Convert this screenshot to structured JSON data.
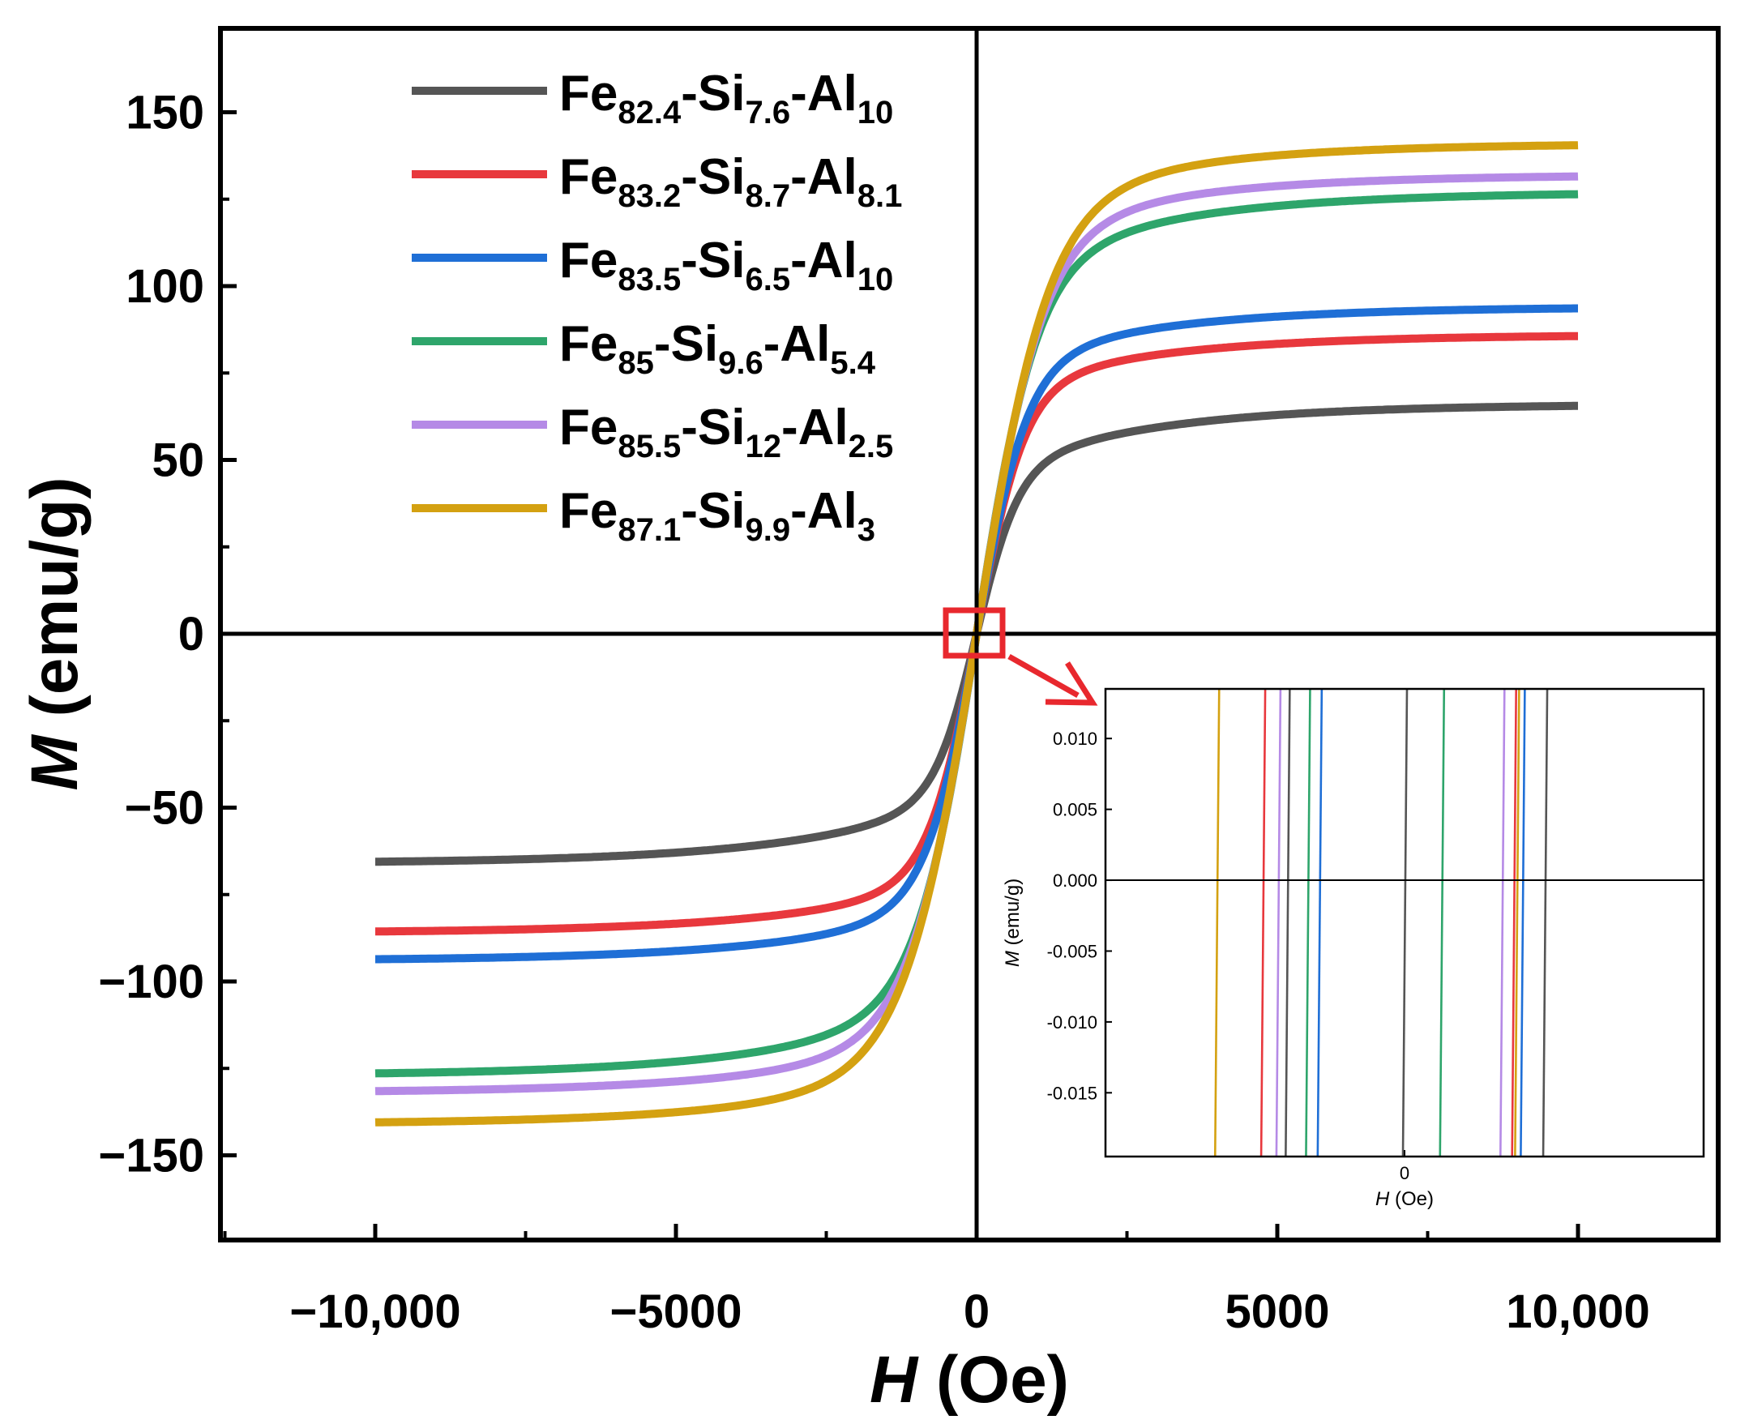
{
  "chart_data": {
    "type": "line",
    "xlabel": "H (Oe)",
    "xlabel_italic": "H",
    "xlabel_rest": " (Oe)",
    "ylabel": "M (emu/g)",
    "ylabel_italic": "M",
    "ylabel_rest": " (emu/g)",
    "xlim": [
      -12500,
      12500
    ],
    "ylim": [
      -175,
      175
    ],
    "xticks": [
      -10000,
      -5000,
      0,
      5000,
      10000
    ],
    "xtick_labels": [
      "−10,000",
      "−5000",
      "0",
      "5000",
      "10,000"
    ],
    "yticks": [
      -150,
      -100,
      -50,
      0,
      50,
      100,
      150
    ],
    "ytick_labels": [
      "−150",
      "−100",
      "−50",
      "0",
      "50",
      "100",
      "150"
    ],
    "legend_position": "top-left",
    "series": [
      {
        "name": "Fe82.4-Si7.6-Al10",
        "parts": [
          [
            "Fe",
            "82.4"
          ],
          [
            "-Si",
            "7.6"
          ],
          [
            "-Al",
            "10"
          ]
        ],
        "color": "#555555",
        "ms": 66,
        "knee": 45,
        "hk": 700,
        "rise": 6
      },
      {
        "name": "Fe83.2-Si8.7-Al8.1",
        "parts": [
          [
            "Fe",
            "83.2"
          ],
          [
            "-Si",
            "8.7"
          ],
          [
            "-Al",
            "8.1"
          ]
        ],
        "color": "#e8383d",
        "ms": 86,
        "knee": 68,
        "hk": 800,
        "rise": 5
      },
      {
        "name": "Fe83.5-Si6.5-Al10",
        "parts": [
          [
            "Fe",
            "83.5"
          ],
          [
            "-Si",
            "6.5"
          ],
          [
            "-Al",
            "10"
          ]
        ],
        "color": "#1f6fd6",
        "ms": 94,
        "knee": 75,
        "hk": 850,
        "rise": 5
      },
      {
        "name": "Fe85-Si9.6-Al5.4",
        "parts": [
          [
            "Fe",
            "85"
          ],
          [
            "-Si",
            "9.6"
          ],
          [
            "-Al",
            "5.4"
          ]
        ],
        "color": "#2ea56b",
        "ms": 127,
        "knee": 100,
        "hk": 1000,
        "rise": 6
      },
      {
        "name": "Fe85.5-Si12-Al2.5",
        "parts": [
          [
            "Fe",
            "85.5"
          ],
          [
            "-Si",
            "12"
          ],
          [
            "-Al",
            "2.5"
          ]
        ],
        "color": "#b58ae6",
        "ms": 132,
        "knee": 110,
        "hk": 1100,
        "rise": 5
      },
      {
        "name": "Fe87.1-Si9.9-Al3",
        "parts": [
          [
            "Fe",
            "87.1"
          ],
          [
            "-Si",
            "9.9"
          ],
          [
            "-Al",
            "3"
          ]
        ],
        "color": "#d4a111",
        "ms": 141,
        "knee": 118,
        "hk": 1200,
        "rise": 6
      }
    ],
    "inset": {
      "xlabel": "H (Oe)",
      "xlabel_italic": "H",
      "xlabel_rest": " (Oe)",
      "ylabel": "M (emu/g)",
      "ylabel_italic": "M",
      "ylabel_rest": " (emu/g)",
      "xlim": [
        -1,
        1
      ],
      "ylim": [
        -0.0195,
        0.0135
      ],
      "xtick_labels": [
        "0"
      ],
      "yticks": [
        0.01,
        0.005,
        0.0,
        -0.005,
        -0.01,
        -0.015
      ],
      "ytick_labels": [
        "0.010",
        "0.005",
        "0.000",
        "-0.005",
        "-0.010",
        "-0.015"
      ],
      "crossings": [
        {
          "series": "Fe82.4-Si7.6-Al10",
          "coercivity": [
            -0.392,
            0.0,
            0.469
          ],
          "color": "#555555"
        },
        {
          "series": "Fe83.2-Si8.7-Al8.1",
          "coercivity": [
            -0.474,
            0.365
          ],
          "color": "#e8383d"
        },
        {
          "series": "Fe83.5-Si6.5-Al10",
          "coercivity": [
            -0.285,
            0.394
          ],
          "color": "#1f6fd6"
        },
        {
          "series": "Fe85-Si9.6-Al5.4",
          "coercivity": [
            -0.324,
            0.124
          ],
          "color": "#2ea56b"
        },
        {
          "series": "Fe85.5-Si12-Al2.5",
          "coercivity": [
            -0.423,
            0.326
          ],
          "color": "#b58ae6"
        },
        {
          "series": "Fe87.1-Si9.9-Al3",
          "coercivity": [
            -0.628,
            0.375
          ],
          "color": "#d4a111"
        }
      ]
    }
  }
}
